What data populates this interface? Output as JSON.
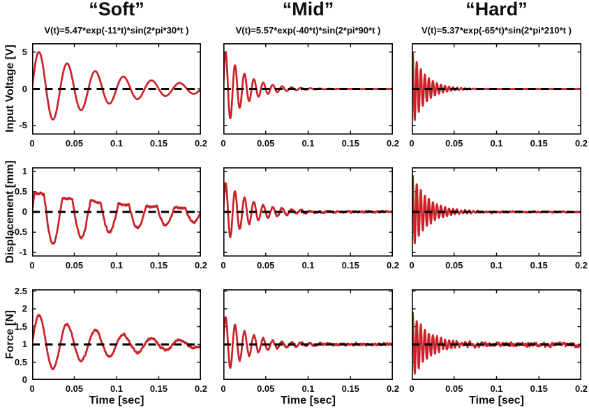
{
  "figure": {
    "background": "#ffffff",
    "columns": [
      {
        "id": "soft",
        "title": "“Soft”",
        "equation": "V(t)=5.47*exp(-11*t)*sin(2*pi*30*t )"
      },
      {
        "id": "mid",
        "title": "“Mid”",
        "equation": "V(t)=5.57*exp(-40*t)*sin(2*pi*90*t )"
      },
      {
        "id": "hard",
        "title": "“Hard”",
        "equation": "V(t)=5.37*exp(-65*t)*sin(2*pi*210*t )"
      }
    ],
    "rows": [
      {
        "id": "input-voltage",
        "ylabel": "Input Voltage [V]",
        "ylim": [
          -6.2,
          6.2
        ],
        "yticks": [
          -5,
          0,
          5
        ],
        "ytick_labels": [
          "-5",
          "0",
          "5"
        ],
        "baseline": 0
      },
      {
        "id": "displacement",
        "ylabel": "Displacement [mm]",
        "ylim": [
          -1.1,
          1.1
        ],
        "yticks": [
          -1,
          -0.5,
          0,
          0.5,
          1
        ],
        "ytick_labels": [
          "-1",
          "-0.5",
          "0",
          "0.5",
          "1"
        ],
        "baseline": 0
      },
      {
        "id": "force",
        "ylabel": "Force [N]",
        "ylim": [
          0,
          2.55
        ],
        "yticks": [
          0,
          0.5,
          1,
          1.5,
          2,
          2.5
        ],
        "ytick_labels": [
          "0",
          "0.5",
          "1",
          "1.5",
          "2",
          "2.5"
        ],
        "baseline": 1
      }
    ],
    "xlabel": "Time [sec]",
    "xlim": [
      0,
      0.2
    ],
    "xticks": [
      0,
      0.05,
      0.1,
      0.15,
      0.2
    ],
    "xtick_labels": [
      "0",
      "0.05",
      "0.1",
      "0.15",
      "0.2"
    ]
  },
  "colors": {
    "curve": "#cb2229",
    "baseline": "#000000",
    "axis": "#000000",
    "text": "#0d0d0d"
  },
  "chart_data": [
    {
      "row": "input-voltage",
      "column": "soft",
      "type": "line",
      "series": "input voltage",
      "model": "offset + amp*exp(-decay*t)*sin(2*pi*freq*t)",
      "equation_shown": "V(t)=5.47*exp(-11*t)*sin(2*pi*30*t )",
      "amp": 5.47,
      "decay": 11,
      "freq": 30,
      "offset": 0,
      "noise": 0,
      "seed": 1,
      "clip_pos": null,
      "x_range": [
        0,
        0.2
      ],
      "ylim": [
        -6.2,
        6.2
      ],
      "baseline": 0
    },
    {
      "row": "input-voltage",
      "column": "mid",
      "type": "line",
      "series": "input voltage",
      "model": "offset + amp*exp(-decay*t)*sin(2*pi*freq*t)",
      "equation_shown": "V(t)=5.57*exp(-40*t)*sin(2*pi*90*t )",
      "amp": 5.57,
      "decay": 40,
      "freq": 90,
      "offset": 0,
      "noise": 0,
      "seed": 2,
      "clip_pos": null,
      "x_range": [
        0,
        0.2
      ],
      "ylim": [
        -6.2,
        6.2
      ],
      "baseline": 0
    },
    {
      "row": "input-voltage",
      "column": "hard",
      "type": "line",
      "series": "input voltage",
      "model": "offset + amp*exp(-decay*t)*sin(2*pi*freq*t)",
      "equation_shown": "V(t)=5.37*exp(-65*t)*sin(2*pi*210*t )",
      "amp": 5.37,
      "decay": 65,
      "freq": 210,
      "offset": 0,
      "noise": 0,
      "seed": 3,
      "clip_pos": null,
      "x_range": [
        0,
        0.2
      ],
      "ylim": [
        -6.2,
        6.2
      ],
      "baseline": 0
    },
    {
      "row": "displacement",
      "column": "soft",
      "type": "line",
      "series": "displacement",
      "model": "offset + amp*exp(-decay*t)*sin(2*pi*freq*t), positive lobes saturated",
      "amp": 0.95,
      "decay": 7,
      "freq": 30,
      "offset": 0,
      "noise": 0.018,
      "seed": 7,
      "clip_pos": {
        "level": 0.48,
        "decay": 9
      },
      "x_range": [
        0,
        0.2
      ],
      "ylim": [
        -1.1,
        1.1
      ],
      "baseline": 0
    },
    {
      "row": "displacement",
      "column": "mid",
      "type": "line",
      "series": "displacement",
      "model": "offset + amp*exp(-decay*t)*sin(2*pi*freq*t)",
      "amp": 0.8,
      "decay": 33,
      "freq": 90,
      "offset": 0,
      "noise": 0.015,
      "seed": 8,
      "clip_pos": null,
      "x_range": [
        0,
        0.2
      ],
      "ylim": [
        -1.1,
        1.1
      ],
      "baseline": 0
    },
    {
      "row": "displacement",
      "column": "hard",
      "type": "line",
      "series": "displacement",
      "model": "offset + amp*exp(-decay*t)*sin(2*pi*freq*t)",
      "amp": 0.95,
      "decay": 55,
      "freq": 210,
      "offset": 0,
      "noise": 0.012,
      "seed": 9,
      "clip_pos": null,
      "x_range": [
        0,
        0.2
      ],
      "ylim": [
        -1.1,
        1.1
      ],
      "baseline": 0
    },
    {
      "row": "force",
      "column": "soft",
      "type": "line",
      "series": "force",
      "model": "offset + amp*exp(-decay*t)*sin(2*pi*freq*t)",
      "amp": 0.9,
      "decay": 11,
      "freq": 30,
      "offset": 1,
      "noise": 0.02,
      "seed": 10,
      "clip_pos": null,
      "x_range": [
        0,
        0.2
      ],
      "ylim": [
        0,
        2.55
      ],
      "baseline": 1
    },
    {
      "row": "force",
      "column": "mid",
      "type": "line",
      "series": "force",
      "model": "offset + amp*exp(-decay*t)*sin(2*pi*freq*t)",
      "amp": 0.85,
      "decay": 33,
      "freq": 90,
      "offset": 1,
      "noise": 0.02,
      "seed": 11,
      "clip_pos": null,
      "x_range": [
        0,
        0.2
      ],
      "ylim": [
        0,
        2.55
      ],
      "baseline": 1
    },
    {
      "row": "force",
      "column": "hard",
      "type": "line",
      "series": "force",
      "model": "offset + amp*exp(-decay*t)*sin(2*pi*freq*t)",
      "amp": 0.95,
      "decay": 50,
      "freq": 210,
      "offset": 1,
      "noise": 0.035,
      "seed": 12,
      "clip_pos": null,
      "x_range": [
        0,
        0.2
      ],
      "ylim": [
        0,
        2.55
      ],
      "baseline": 1
    }
  ]
}
